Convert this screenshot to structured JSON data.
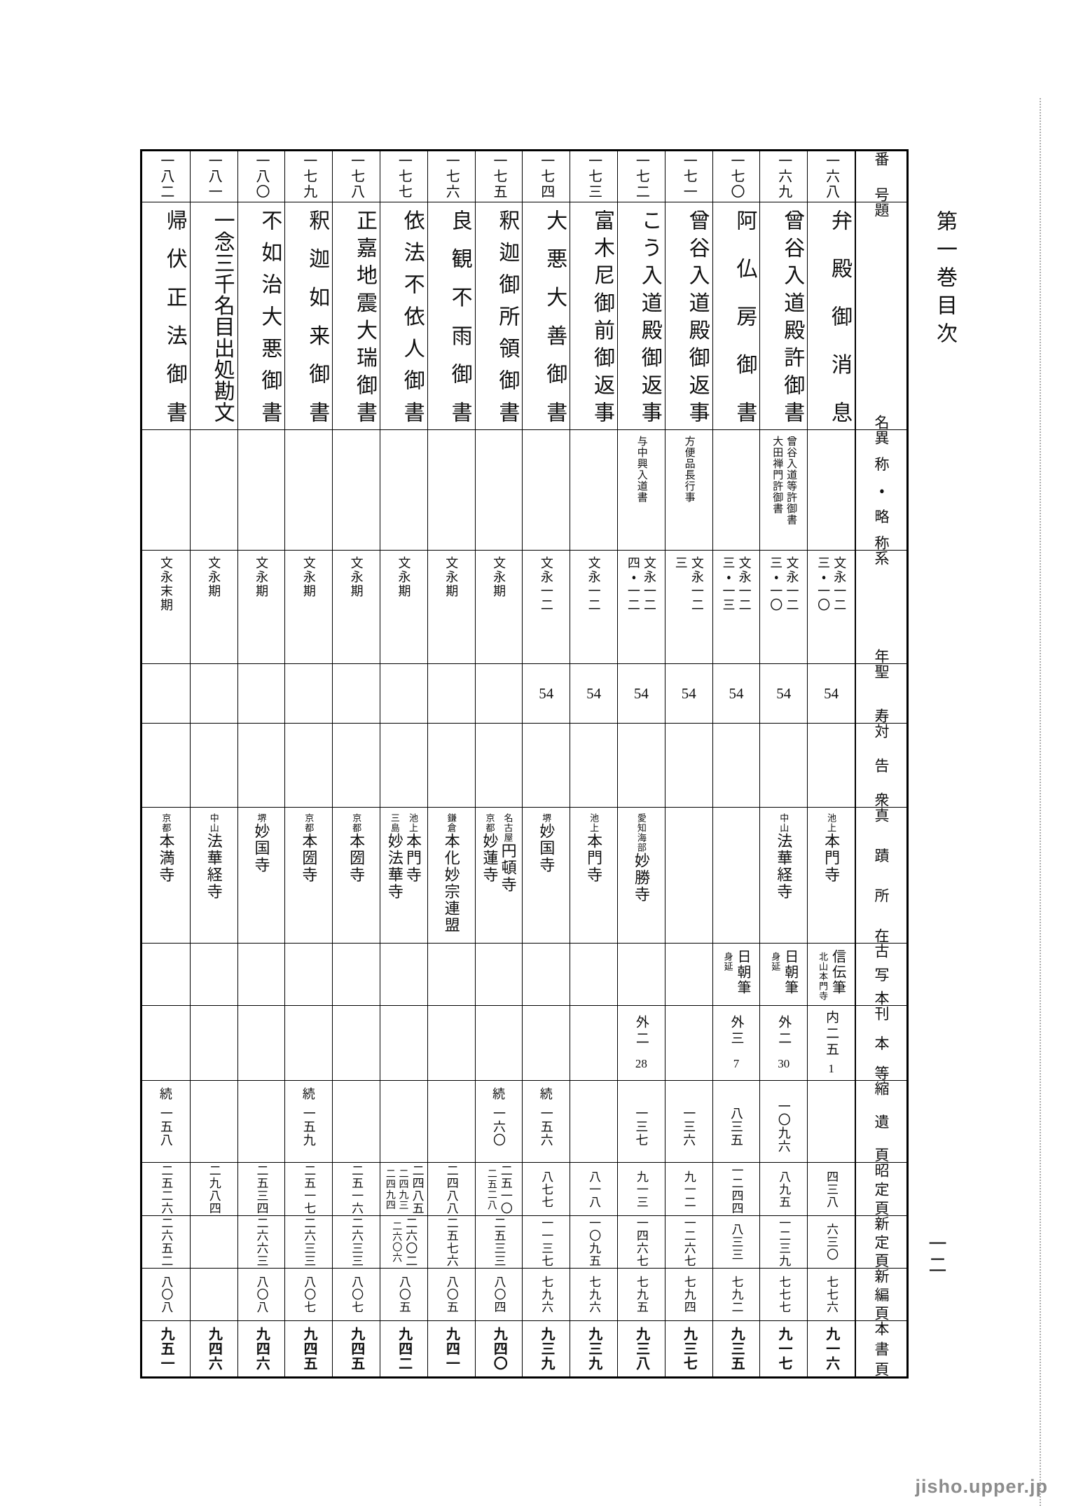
{
  "page": {
    "volume_title": "第一巻目次",
    "page_number": "一二",
    "watermark": "jisho.upper.jp"
  },
  "header": {
    "number": "番号",
    "title": "題名",
    "alias": "異称・略称",
    "dating": "系年",
    "age": "聖寿",
    "audience": "対告衆",
    "location": "真蹟所在",
    "manuscript": "古写本",
    "edition": "刊本等",
    "shukui": "縮遺頁",
    "shotei": "昭定頁",
    "shintei": "新定頁",
    "shinpen": "新編頁",
    "honsho": "本書頁"
  },
  "entries": [
    {
      "number": "一六八",
      "title": "弁殿御消息",
      "alias": [],
      "dating_main": "文永一二",
      "dating_sub": "三・一〇",
      "age": "54",
      "audience": "",
      "locations": [
        {
          "place": "池上",
          "temple": "本門寺"
        }
      ],
      "ms_main": "信伝筆",
      "ms_note": "北山本門寺",
      "ed_kanji": "内二五",
      "ed_num": "1",
      "shukui_prefix": "",
      "shukui": "",
      "shotei": [
        "四三八"
      ],
      "shintei": [
        "六三〇"
      ],
      "shinpen": "七七六",
      "honsho": "九一六"
    },
    {
      "number": "一六九",
      "title": "曾谷入道殿許御書",
      "alias": [
        "曾谷入道等許御書",
        "大田禅門許御書"
      ],
      "dating_main": "文永一二",
      "dating_sub": "三・一〇",
      "age": "54",
      "audience": "",
      "locations": [
        {
          "place": "中山",
          "temple": "法華経寺"
        }
      ],
      "ms_main": "日朝筆",
      "ms_note": "身延",
      "ed_kanji": "外二",
      "ed_num": "30",
      "shukui_prefix": "",
      "shukui": "一〇九六",
      "shotei": [
        "八九五"
      ],
      "shintei": [
        "一二三九"
      ],
      "shinpen": "七七七",
      "honsho": "九一七"
    },
    {
      "number": "一七〇",
      "title": "阿仏房御書",
      "alias": [],
      "dating_main": "文永一二",
      "dating_sub": "三・一三",
      "age": "54",
      "audience": "",
      "locations": [],
      "ms_main": "日朝筆",
      "ms_note": "身延",
      "ed_kanji": "外三",
      "ed_num": "7",
      "shukui_prefix": "",
      "shukui": "八三五",
      "shotei": [
        "一二四四"
      ],
      "shintei": [
        "八三三"
      ],
      "shinpen": "七九二",
      "honsho": "九三五"
    },
    {
      "number": "一七一",
      "title": "曾谷入道殿御返事",
      "alias": [
        "方便品長行事"
      ],
      "dating_main": "文永一二",
      "dating_sub": "三",
      "age": "54",
      "audience": "",
      "locations": [],
      "ms_main": "",
      "ms_note": "",
      "ed_kanji": "",
      "ed_num": "",
      "shukui_prefix": "",
      "shukui": "一三六",
      "shotei": [
        "九一二"
      ],
      "shintei": [
        "一二六七"
      ],
      "shinpen": "七九四",
      "honsho": "九三七"
    },
    {
      "number": "一七二",
      "title": "こう入道殿御返事",
      "alias": [
        "与中興入道書"
      ],
      "dating_main": "文永一二",
      "dating_sub": "四・一二",
      "age": "54",
      "audience": "",
      "locations": [
        {
          "place": "愛知海部",
          "temple": "妙勝寺"
        }
      ],
      "ms_main": "",
      "ms_note": "",
      "ed_kanji": "外二",
      "ed_num": "28",
      "shukui_prefix": "",
      "shukui": "一三七",
      "shotei": [
        "九一三"
      ],
      "shintei": [
        "一四六七"
      ],
      "shinpen": "七九五",
      "honsho": "九三八"
    },
    {
      "number": "一七三",
      "title": "富木尼御前御返事",
      "alias": [],
      "dating_main": "文永一二",
      "dating_sub": "",
      "age": "54",
      "audience": "",
      "locations": [
        {
          "place": "池上",
          "temple": "本門寺"
        }
      ],
      "ms_main": "",
      "ms_note": "",
      "ed_kanji": "",
      "ed_num": "",
      "shukui_prefix": "",
      "shukui": "",
      "shotei": [
        "八一八"
      ],
      "shintei": [
        "一〇九五"
      ],
      "shinpen": "七九六",
      "honsho": "九三九"
    },
    {
      "number": "一七四",
      "title": "大悪大善御書",
      "alias": [],
      "dating_main": "文永一二",
      "dating_sub": "",
      "age": "54",
      "audience": "",
      "locations": [
        {
          "place": "堺",
          "temple": "妙国寺"
        }
      ],
      "ms_main": "",
      "ms_note": "",
      "ed_kanji": "",
      "ed_num": "",
      "shukui_prefix": "続",
      "shukui": "一五六",
      "shotei": [
        "八七七"
      ],
      "shintei": [
        "一一三七"
      ],
      "shinpen": "七九六",
      "honsho": "九三九"
    },
    {
      "number": "一七五",
      "title": "釈迦御所領御書",
      "alias": [],
      "dating_main": "文永期",
      "dating_sub": "",
      "age": "",
      "audience": "",
      "locations": [
        {
          "place": "名古屋",
          "temple": "円頓寺"
        },
        {
          "place": "京都",
          "temple": "妙蓮寺"
        }
      ],
      "ms_main": "",
      "ms_note": "",
      "ed_kanji": "",
      "ed_num": "",
      "shukui_prefix": "続",
      "shukui": "一六〇",
      "shotei": [
        "二五一〇",
        "二五二八"
      ],
      "shintei": [
        "二五三三"
      ],
      "shinpen": "八〇四",
      "honsho": "九四〇"
    },
    {
      "number": "一七六",
      "title": "良観不雨御書",
      "alias": [],
      "dating_main": "文永期",
      "dating_sub": "",
      "age": "",
      "audience": "",
      "locations": [
        {
          "place": "鎌倉",
          "temple": "本化妙宗連盟"
        }
      ],
      "ms_main": "",
      "ms_note": "",
      "ed_kanji": "",
      "ed_num": "",
      "shukui_prefix": "",
      "shukui": "",
      "shotei": [
        "二四八八"
      ],
      "shintei": [
        "二五七六"
      ],
      "shinpen": "八〇五",
      "honsho": "九四一"
    },
    {
      "number": "一七七",
      "title": "依法不依人御書",
      "alias": [],
      "dating_main": "文永期",
      "dating_sub": "",
      "age": "",
      "audience": "",
      "locations": [
        {
          "place": "池上",
          "temple": "本門寺"
        },
        {
          "place": "三島",
          "temple": "妙法華寺"
        }
      ],
      "ms_main": "",
      "ms_note": "",
      "ed_kanji": "",
      "ed_num": "",
      "shukui_prefix": "",
      "shukui": "",
      "shotei": [
        "二四八五",
        "二四九三",
        "二四九四"
      ],
      "shintei": [
        "二六〇二",
        "二六〇六"
      ],
      "shinpen": "八〇五",
      "honsho": "九四二"
    },
    {
      "number": "一七八",
      "title": "正嘉地震大瑞御書",
      "alias": [],
      "dating_main": "文永期",
      "dating_sub": "",
      "age": "",
      "audience": "",
      "locations": [
        {
          "place": "京都",
          "temple": "本圀寺"
        }
      ],
      "ms_main": "",
      "ms_note": "",
      "ed_kanji": "",
      "ed_num": "",
      "shukui_prefix": "",
      "shukui": "",
      "shotei": [
        "二五一六"
      ],
      "shintei": [
        "二六三三"
      ],
      "shinpen": "八〇七",
      "honsho": "九四五"
    },
    {
      "number": "一七九",
      "title": "釈迦如来御書",
      "alias": [],
      "dating_main": "文永期",
      "dating_sub": "",
      "age": "",
      "audience": "",
      "locations": [
        {
          "place": "京都",
          "temple": "本圀寺"
        }
      ],
      "ms_main": "",
      "ms_note": "",
      "ed_kanji": "",
      "ed_num": "",
      "shukui_prefix": "続",
      "shukui": "一五九",
      "shotei": [
        "二五一七"
      ],
      "shintei": [
        "二六三三"
      ],
      "shinpen": "八〇七",
      "honsho": "九四五"
    },
    {
      "number": "一八〇",
      "title": "不如治大悪御書",
      "alias": [],
      "dating_main": "文永期",
      "dating_sub": "",
      "age": "",
      "audience": "",
      "locations": [
        {
          "place": "堺",
          "temple": "妙国寺"
        }
      ],
      "ms_main": "",
      "ms_note": "",
      "ed_kanji": "",
      "ed_num": "",
      "shukui_prefix": "",
      "shukui": "",
      "shotei": [
        "二五三四"
      ],
      "shintei": [
        "二六六三"
      ],
      "shinpen": "八〇八",
      "honsho": "九四六"
    },
    {
      "number": "一八一",
      "title": "一念三千名目出処勘文",
      "alias": [],
      "dating_main": "文永期",
      "dating_sub": "",
      "age": "",
      "audience": "",
      "locations": [
        {
          "place": "中山",
          "temple": "法華経寺"
        }
      ],
      "ms_main": "",
      "ms_note": "",
      "ed_kanji": "",
      "ed_num": "",
      "shukui_prefix": "",
      "shukui": "",
      "shotei": [
        "二九八四"
      ],
      "shintei": [],
      "shinpen": "",
      "honsho": "九四六"
    },
    {
      "number": "一八二",
      "title": "帰伏正法御書",
      "alias": [],
      "dating_main": "文永末期",
      "dating_sub": "",
      "age": "",
      "audience": "",
      "locations": [
        {
          "place": "京都",
          "temple": "本満寺"
        }
      ],
      "ms_main": "",
      "ms_note": "",
      "ed_kanji": "",
      "ed_num": "",
      "shukui_prefix": "続",
      "shukui": "一五八",
      "shotei": [
        "二五二六"
      ],
      "shintei": [
        "二六五二"
      ],
      "shinpen": "八〇八",
      "honsho": "九五一"
    }
  ]
}
